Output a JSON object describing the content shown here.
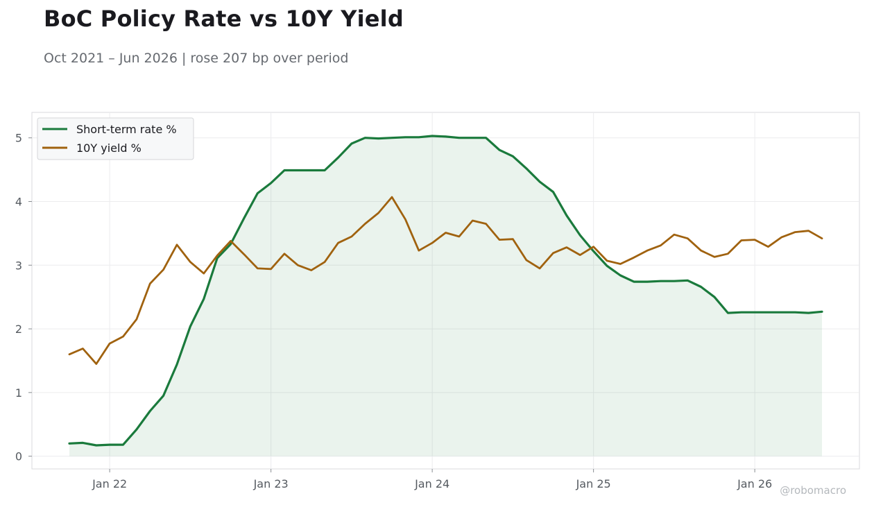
{
  "title": "BoC Policy Rate vs 10Y Yield",
  "subtitle": "Oct 2021 – Jun 2026 | rose 207 bp over period",
  "watermark": "@robomacro",
  "chart_data": {
    "type": "line",
    "x_start": "2021-10",
    "x_end": "2026-06",
    "x": [
      "2021-10",
      "2021-11",
      "2021-12",
      "2022-01",
      "2022-02",
      "2022-03",
      "2022-04",
      "2022-05",
      "2022-06",
      "2022-07",
      "2022-08",
      "2022-09",
      "2022-10",
      "2022-11",
      "2022-12",
      "2023-01",
      "2023-02",
      "2023-03",
      "2023-04",
      "2023-05",
      "2023-06",
      "2023-07",
      "2023-08",
      "2023-09",
      "2023-10",
      "2023-11",
      "2023-12",
      "2024-01",
      "2024-02",
      "2024-03",
      "2024-04",
      "2024-05",
      "2024-06",
      "2024-07",
      "2024-08",
      "2024-09",
      "2024-10",
      "2024-11",
      "2024-12",
      "2025-01",
      "2025-02",
      "2025-03",
      "2025-04",
      "2025-05",
      "2025-06",
      "2025-07",
      "2025-08",
      "2025-09",
      "2025-10",
      "2025-11",
      "2025-12",
      "2026-01",
      "2026-02",
      "2026-03",
      "2026-04",
      "2026-05",
      "2026-06"
    ],
    "series": [
      {
        "name": "Short-term rate %",
        "color": "#1a7a3c",
        "fill": true,
        "values": [
          0.2,
          0.21,
          0.17,
          0.18,
          0.18,
          0.42,
          0.71,
          0.95,
          1.44,
          2.04,
          2.47,
          3.11,
          3.33,
          3.74,
          4.13,
          4.29,
          4.49,
          4.49,
          4.49,
          4.49,
          4.69,
          4.91,
          5.0,
          4.99,
          5.0,
          5.01,
          5.01,
          5.03,
          5.02,
          5.0,
          5.0,
          5.0,
          4.81,
          4.71,
          4.52,
          4.31,
          4.15,
          3.78,
          3.47,
          3.22,
          2.99,
          2.84,
          2.74,
          2.74,
          2.75,
          2.75,
          2.76,
          2.66,
          2.5,
          2.25,
          2.26,
          2.26,
          2.26,
          2.26,
          2.26,
          2.25,
          2.27
        ]
      },
      {
        "name": "10Y yield %",
        "color": "#a0620f",
        "fill": false,
        "values": [
          1.6,
          1.69,
          1.45,
          1.77,
          1.88,
          2.15,
          2.71,
          2.93,
          3.32,
          3.05,
          2.87,
          3.15,
          3.38,
          3.17,
          2.95,
          2.94,
          3.18,
          3.0,
          2.92,
          3.05,
          3.35,
          3.45,
          3.65,
          3.82,
          4.07,
          3.72,
          3.23,
          3.35,
          3.51,
          3.45,
          3.7,
          3.65,
          3.4,
          3.41,
          3.08,
          2.95,
          3.19,
          3.28,
          3.16,
          3.29,
          3.07,
          3.02,
          3.12,
          3.23,
          3.31,
          3.48,
          3.42,
          3.23,
          3.13,
          3.18,
          3.39,
          3.4,
          3.29,
          3.44,
          3.52,
          3.54,
          3.42
        ]
      }
    ],
    "ylim": [
      -0.2,
      5.4
    ],
    "yticks": [
      "0",
      "1",
      "2",
      "3",
      "4",
      "5"
    ],
    "xticks": [
      "Jan 22",
      "Jan 23",
      "Jan 24",
      "Jan 25",
      "Jan 26"
    ],
    "legend_position": "top-left",
    "grid": true,
    "xlabel": "",
    "ylabel": ""
  }
}
